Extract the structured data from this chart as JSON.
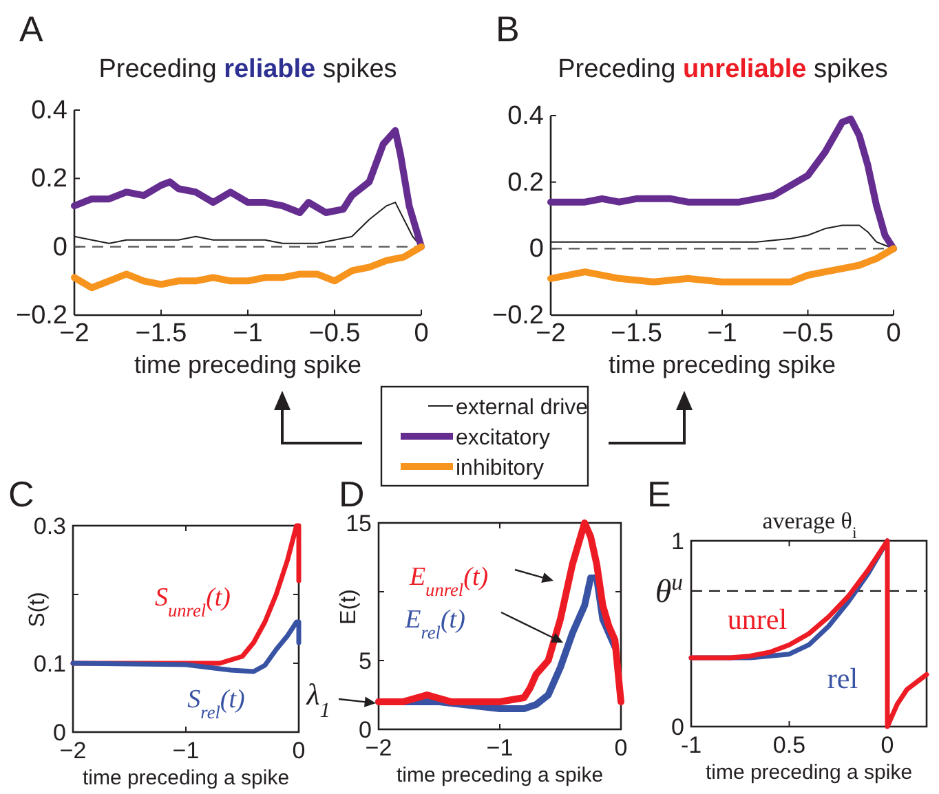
{
  "chart_data": [
    {
      "type": "line",
      "title": "Preceding reliable spikes",
      "xlabel": "time preceding spike",
      "annotations": [
        "A"
      ],
      "xlim": [
        -2,
        0
      ],
      "ylim": [
        -0.2,
        0.4
      ],
      "xticks": [
        -2,
        -1.5,
        -1,
        -0.5,
        0
      ],
      "yticks": [
        -0.2,
        0,
        0.2,
        0.4
      ],
      "legend": "bottom",
      "grid": false,
      "ref_lines": [
        {
          "axis": "y",
          "value": 0,
          "line_style": "dashed",
          "color": "#555555"
        }
      ],
      "series": [
        {
          "name": "external drive",
          "color": "#231f20",
          "x": [
            -2,
            -1.9,
            -1.8,
            -1.7,
            -1.6,
            -1.5,
            -1.4,
            -1.3,
            -1.2,
            -1.1,
            -1,
            -0.9,
            -0.8,
            -0.7,
            -0.6,
            -0.5,
            -0.4,
            -0.3,
            -0.2,
            -0.15,
            -0.1,
            -0.05,
            0
          ],
          "values": [
            0.03,
            0.02,
            0.01,
            0.02,
            0.02,
            0.02,
            0.02,
            0.03,
            0.02,
            0.02,
            0.02,
            0.02,
            0.01,
            0.01,
            0.01,
            0.02,
            0.03,
            0.08,
            0.12,
            0.13,
            0.08,
            0.03,
            0
          ]
        },
        {
          "name": "excitatory",
          "color": "#662d91",
          "x": [
            -2,
            -1.9,
            -1.8,
            -1.7,
            -1.6,
            -1.5,
            -1.45,
            -1.4,
            -1.3,
            -1.2,
            -1.1,
            -1,
            -0.9,
            -0.8,
            -0.7,
            -0.65,
            -0.55,
            -0.45,
            -0.4,
            -0.3,
            -0.22,
            -0.15,
            -0.12,
            -0.07,
            0
          ],
          "values": [
            0.12,
            0.14,
            0.14,
            0.16,
            0.15,
            0.18,
            0.19,
            0.17,
            0.16,
            0.13,
            0.16,
            0.13,
            0.13,
            0.12,
            0.1,
            0.13,
            0.1,
            0.11,
            0.15,
            0.19,
            0.3,
            0.34,
            0.27,
            0.12,
            0
          ]
        },
        {
          "name": "inhibitory",
          "color": "#f7941d",
          "x": [
            -2,
            -1.9,
            -1.8,
            -1.7,
            -1.6,
            -1.5,
            -1.4,
            -1.3,
            -1.2,
            -1.1,
            -1,
            -0.9,
            -0.8,
            -0.7,
            -0.6,
            -0.5,
            -0.4,
            -0.3,
            -0.2,
            -0.1,
            0
          ],
          "values": [
            -0.09,
            -0.12,
            -0.1,
            -0.08,
            -0.1,
            -0.11,
            -0.1,
            -0.1,
            -0.09,
            -0.1,
            -0.1,
            -0.09,
            -0.09,
            -0.08,
            -0.08,
            -0.1,
            -0.07,
            -0.06,
            -0.04,
            -0.03,
            0
          ]
        }
      ]
    },
    {
      "type": "line",
      "title": "Preceding unreliable spikes",
      "xlabel": "time preceding spike",
      "annotations": [
        "B"
      ],
      "xlim": [
        -2,
        0
      ],
      "ylim": [
        -0.2,
        0.4
      ],
      "xticks": [
        -2,
        -1.5,
        -1,
        -0.5,
        0
      ],
      "yticks": [
        -0.2,
        0,
        0.2,
        0.4
      ],
      "grid": false,
      "ref_lines": [
        {
          "axis": "y",
          "value": 0,
          "line_style": "dashed",
          "color": "#555555"
        }
      ],
      "series": [
        {
          "color": "#231f20",
          "x": [
            -2,
            -1.8,
            -1.6,
            -1.4,
            -1.2,
            -1,
            -0.8,
            -0.6,
            -0.5,
            -0.4,
            -0.3,
            -0.2,
            -0.15,
            -0.1,
            -0.05,
            0
          ],
          "values": [
            0.02,
            0.02,
            0.02,
            0.02,
            0.02,
            0.02,
            0.02,
            0.03,
            0.04,
            0.06,
            0.07,
            0.07,
            0.05,
            0.02,
            0.01,
            0
          ]
        },
        {
          "color": "#662d91",
          "x": [
            -2,
            -1.9,
            -1.8,
            -1.7,
            -1.6,
            -1.5,
            -1.4,
            -1.3,
            -1.2,
            -1.1,
            -1,
            -0.9,
            -0.8,
            -0.7,
            -0.6,
            -0.5,
            -0.4,
            -0.3,
            -0.25,
            -0.2,
            -0.15,
            -0.1,
            -0.05,
            0
          ],
          "values": [
            0.14,
            0.14,
            0.14,
            0.15,
            0.14,
            0.15,
            0.15,
            0.15,
            0.14,
            0.14,
            0.14,
            0.14,
            0.15,
            0.16,
            0.19,
            0.22,
            0.29,
            0.38,
            0.39,
            0.34,
            0.25,
            0.13,
            0.04,
            0
          ]
        },
        {
          "color": "#f7941d",
          "x": [
            -2,
            -1.8,
            -1.6,
            -1.4,
            -1.2,
            -1,
            -0.8,
            -0.6,
            -0.5,
            -0.4,
            -0.3,
            -0.2,
            -0.1,
            0
          ],
          "values": [
            -0.09,
            -0.07,
            -0.09,
            -0.1,
            -0.09,
            -0.1,
            -0.1,
            -0.1,
            -0.08,
            -0.07,
            -0.06,
            -0.05,
            -0.03,
            0
          ]
        }
      ]
    },
    {
      "type": "line",
      "xlabel": "time preceding a spike",
      "ylabel": "S(t)",
      "xlim": [
        -2,
        0
      ],
      "ylim": [
        0,
        0.3
      ],
      "xticks": [
        -2,
        -1,
        0
      ],
      "yticks": [
        0,
        0.1,
        {
          "value": 0.2,
          "label": null
        },
        0.3
      ],
      "grid": false,
      "annotations": [
        "C"
      ],
      "series": [
        {
          "name": "S$_{unrel}$(t)",
          "color": "#ed1c24",
          "x": [
            -2,
            -1,
            -0.7,
            -0.5,
            -0.4,
            -0.3,
            -0.2,
            -0.1,
            -0.02,
            0,
            0
          ],
          "values": [
            0.1,
            0.1,
            0.1,
            0.11,
            0.13,
            0.16,
            0.2,
            0.25,
            0.3,
            0.3,
            0.22
          ]
        },
        {
          "name": "S$_{rel}$(t)",
          "color": "#3953a4",
          "x": [
            -2,
            -1,
            -0.6,
            -0.4,
            -0.3,
            -0.2,
            -0.1,
            -0.02,
            0,
            0
          ],
          "values": [
            0.1,
            0.098,
            0.09,
            0.088,
            0.097,
            0.12,
            0.14,
            0.16,
            0.16,
            0.13
          ]
        }
      ]
    },
    {
      "type": "line",
      "xlabel": "time preceding a spike",
      "ylabel": "E(t)",
      "xlim": [
        -2,
        0
      ],
      "ylim": [
        0,
        15
      ],
      "xticks": [
        -2,
        -1,
        0
      ],
      "yticks": [
        0,
        5,
        {
          "value": 10,
          "label": null
        },
        15
      ],
      "grid": false,
      "annotations": [
        "D",
        "λ$_{1}$"
      ],
      "series": [
        {
          "name": "E$_{rel}$(t)",
          "color": "#3953a4",
          "x": [
            -2,
            -1.5,
            -1,
            -0.8,
            -0.7,
            -0.6,
            -0.5,
            -0.4,
            -0.3,
            -0.25,
            -0.2,
            -0.15,
            -0.1,
            -0.05
          ],
          "values": [
            2,
            2,
            1.5,
            1.5,
            1.8,
            2.5,
            4.5,
            7,
            9,
            11,
            11,
            8,
            7,
            6
          ]
        },
        {
          "name": "E$_{unrel}$(t)",
          "color": "#ed1c24",
          "x": [
            -2,
            -1.8,
            -1.6,
            -1.4,
            -1.2,
            -1,
            -0.8,
            -0.75,
            -0.7,
            -0.6,
            -0.5,
            -0.4,
            -0.35,
            -0.3,
            -0.25,
            -0.2,
            -0.15,
            -0.1,
            -0.05,
            0
          ],
          "values": [
            2,
            2,
            2.5,
            2,
            2,
            2,
            2.3,
            3,
            4,
            5,
            8,
            12,
            13.5,
            15,
            14,
            12,
            9,
            7.5,
            6.5,
            2
          ]
        }
      ]
    },
    {
      "type": "line",
      "title": "average θ$_{i}$",
      "xlabel": "time preceding a spike",
      "xlim": [
        -1,
        0.2
      ],
      "ylim": [
        0,
        1
      ],
      "xticks": [
        {
          "value": -1,
          "label": "-1"
        },
        {
          "value": -0.5,
          "label": "0.5"
        },
        0
      ],
      "yticks": [
        0,
        1
      ],
      "grid": false,
      "ref_lines": [
        {
          "axis": "y",
          "value": 0.73,
          "label": "θ$^{u}$",
          "line_style": "dashed",
          "color": "#231f20"
        }
      ],
      "annotations": [
        "E"
      ],
      "series": [
        {
          "name": "rel",
          "color": "#3953a4",
          "x": [
            -1,
            -0.7,
            -0.6,
            -0.5,
            -0.4,
            -0.3,
            -0.2,
            -0.1,
            0
          ],
          "values": [
            0.37,
            0.37,
            0.38,
            0.39,
            0.44,
            0.54,
            0.67,
            0.82,
            1
          ]
        },
        {
          "name": "unrel",
          "color": "#ed1c24",
          "x": [
            -1,
            -0.8,
            -0.7,
            -0.6,
            -0.5,
            -0.4,
            -0.3,
            -0.2,
            -0.1,
            0,
            0,
            0.05,
            0.1,
            0.2
          ],
          "values": [
            0.37,
            0.37,
            0.38,
            0.4,
            0.44,
            0.5,
            0.59,
            0.7,
            0.84,
            1,
            0,
            0.12,
            0.2,
            0.28
          ]
        }
      ]
    }
  ]
}
